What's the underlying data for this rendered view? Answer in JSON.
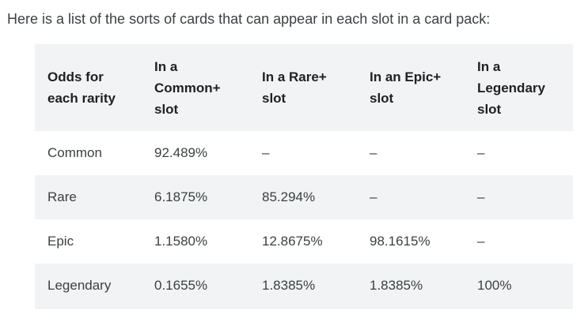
{
  "intro_text": "Here is a list of the sorts of cards that can appear in each slot in a card pack:",
  "table": {
    "headers": [
      [
        "Odds for",
        "each rarity"
      ],
      [
        "In a",
        "Common+",
        "slot"
      ],
      [
        "In a Rare+",
        "slot"
      ],
      [
        "In an Epic+",
        "slot"
      ],
      [
        "In a",
        "Legendary",
        "slot"
      ]
    ],
    "rows": [
      [
        "Common",
        "92.489%",
        "–",
        "–",
        "–"
      ],
      [
        "Rare",
        "6.1875%",
        "85.294%",
        "–",
        "–"
      ],
      [
        "Epic",
        "1.1580%",
        "12.8675%",
        "98.1615%",
        "–"
      ],
      [
        "Legendary",
        "0.1655%",
        "1.8385%",
        "1.8385%",
        "100%"
      ]
    ]
  }
}
